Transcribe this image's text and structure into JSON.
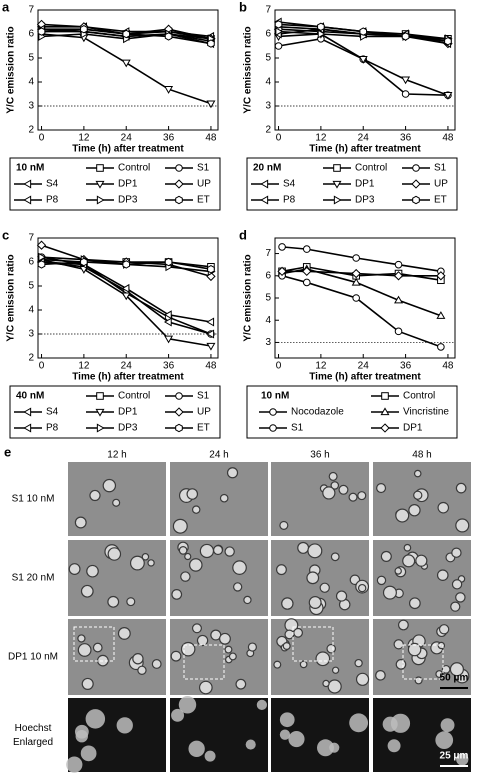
{
  "chart_data": [
    {
      "type": "line",
      "label": "a",
      "xlabel": "Time (h) after treatment",
      "ylabel": "Y/C emission ratio",
      "xlim": [
        -1,
        50
      ],
      "xticks": [
        0,
        12,
        24,
        36,
        48
      ],
      "ylim": [
        2,
        7
      ],
      "yticks": [
        2,
        3,
        4,
        5,
        6,
        7
      ],
      "hline": 3,
      "x": [
        0,
        12,
        24,
        36,
        48
      ],
      "legend_title": "10 nM",
      "series": [
        {
          "name": "Control",
          "marker": "square",
          "color": "#000000",
          "values": [
            6.2,
            6.2,
            6.0,
            6.1,
            5.8
          ]
        },
        {
          "name": "S1",
          "marker": "circle",
          "color": "#000000",
          "values": [
            6.1,
            6.1,
            5.9,
            6.0,
            5.7
          ]
        },
        {
          "name": "S4",
          "marker": "triangle-left",
          "color": "#000000",
          "values": [
            6.3,
            6.3,
            6.1,
            6.1,
            5.9
          ]
        },
        {
          "name": "DP1",
          "marker": "triangle-down",
          "color": "#000000",
          "values": [
            6.0,
            5.85,
            4.8,
            3.7,
            3.1
          ]
        },
        {
          "name": "UP",
          "marker": "diamond",
          "color": "#000000",
          "values": [
            6.4,
            6.3,
            6.0,
            6.2,
            5.8
          ]
        },
        {
          "name": "P8",
          "marker": "triangle-left",
          "color": "#000000",
          "values": [
            6.2,
            6.1,
            5.9,
            6.0,
            5.6
          ]
        },
        {
          "name": "DP3",
          "marker": "triangle-right",
          "color": "#000000",
          "values": [
            5.9,
            6.0,
            5.8,
            6.0,
            5.8
          ]
        },
        {
          "name": "ET",
          "marker": "hexagon",
          "color": "#000000",
          "values": [
            6.1,
            6.2,
            6.0,
            5.9,
            5.6
          ]
        }
      ]
    },
    {
      "type": "line",
      "label": "b",
      "xlabel": "Time (h) after treatment",
      "ylabel": "Y/C emission ratio",
      "xlim": [
        -1,
        50
      ],
      "xticks": [
        0,
        12,
        24,
        36,
        48
      ],
      "ylim": [
        2,
        7
      ],
      "yticks": [
        2,
        3,
        4,
        5,
        6,
        7
      ],
      "hline": 3,
      "x": [
        0,
        12,
        24,
        36,
        48
      ],
      "legend_title": "20 nM",
      "series": [
        {
          "name": "Control",
          "marker": "square",
          "color": "#000000",
          "values": [
            6.3,
            6.2,
            6.0,
            6.0,
            5.8
          ]
        },
        {
          "name": "S1",
          "marker": "circle",
          "color": "#000000",
          "values": [
            5.5,
            5.8,
            4.95,
            3.5,
            3.45
          ]
        },
        {
          "name": "S4",
          "marker": "triangle-left",
          "color": "#000000",
          "values": [
            6.5,
            6.3,
            6.1,
            6.0,
            5.7
          ]
        },
        {
          "name": "DP1",
          "marker": "triangle-down",
          "color": "#000000",
          "values": [
            5.9,
            6.0,
            4.95,
            4.1,
            3.45
          ]
        },
        {
          "name": "UP",
          "marker": "diamond",
          "color": "#000000",
          "values": [
            6.2,
            6.1,
            6.0,
            5.9,
            5.6
          ]
        },
        {
          "name": "P8",
          "marker": "triangle-left",
          "color": "#000000",
          "values": [
            6.0,
            6.2,
            6.0,
            6.0,
            5.6
          ]
        },
        {
          "name": "DP3",
          "marker": "triangle-right",
          "color": "#000000",
          "values": [
            6.1,
            6.0,
            5.9,
            5.9,
            5.8
          ]
        },
        {
          "name": "ET",
          "marker": "hexagon",
          "color": "#000000",
          "values": [
            6.4,
            6.3,
            6.1,
            5.9,
            5.7
          ]
        }
      ]
    },
    {
      "type": "line",
      "label": "c",
      "xlabel": "Time (h) after treatment",
      "ylabel": "Y/C emission ratio",
      "xlim": [
        -1,
        50
      ],
      "xticks": [
        0,
        12,
        24,
        36,
        48
      ],
      "ylim": [
        2,
        7
      ],
      "yticks": [
        2,
        3,
        4,
        5,
        6,
        7
      ],
      "hline": 3,
      "x": [
        0,
        12,
        24,
        36,
        48
      ],
      "legend_title": "40 nM",
      "series": [
        {
          "name": "Control",
          "marker": "square",
          "color": "#000000",
          "values": [
            6.1,
            6.0,
            6.0,
            6.0,
            5.8
          ]
        },
        {
          "name": "S1",
          "marker": "circle",
          "color": "#000000",
          "values": [
            6.2,
            5.9,
            4.7,
            3.7,
            3.0
          ]
        },
        {
          "name": "S4",
          "marker": "triangle-left",
          "color": "#000000",
          "values": [
            6.0,
            5.8,
            4.8,
            3.5,
            3.0
          ]
        },
        {
          "name": "DP1",
          "marker": "triangle-down",
          "color": "#000000",
          "values": [
            6.1,
            5.7,
            4.6,
            2.8,
            2.5
          ]
        },
        {
          "name": "UP",
          "marker": "diamond",
          "color": "#000000",
          "values": [
            6.7,
            6.1,
            6.0,
            5.9,
            5.4
          ]
        },
        {
          "name": "P8",
          "marker": "triangle-left",
          "color": "#000000",
          "values": [
            6.0,
            5.9,
            4.9,
            3.8,
            3.5
          ]
        },
        {
          "name": "DP3",
          "marker": "triangle-right",
          "color": "#000000",
          "values": [
            6.2,
            6.1,
            5.9,
            5.8,
            5.6
          ]
        },
        {
          "name": "ET",
          "marker": "hexagon",
          "color": "#000000",
          "values": [
            5.9,
            6.0,
            5.9,
            6.0,
            5.7
          ]
        }
      ]
    },
    {
      "type": "line",
      "label": "d",
      "xlabel": "Time (h) after treatment",
      "ylabel": "Y/C emission ratio",
      "xlim": [
        -1,
        50
      ],
      "xticks": [
        0,
        12,
        24,
        36,
        48
      ],
      "ylim": [
        2.3,
        7.7
      ],
      "yticks": [
        3,
        4,
        5,
        6,
        7
      ],
      "hline": 3,
      "x": [
        1,
        8,
        22,
        34,
        46
      ],
      "legend_title": "10 nM",
      "series": [
        {
          "name": "Control",
          "marker": "square",
          "color": "#000000",
          "values": [
            6.2,
            6.4,
            6.0,
            6.1,
            5.8
          ]
        },
        {
          "name": "Nocodazole",
          "marker": "circle",
          "color": "#000000",
          "values": [
            7.3,
            7.2,
            6.8,
            6.5,
            6.2
          ]
        },
        {
          "name": "Vincristine",
          "marker": "triangle-up",
          "color": "#000000",
          "values": [
            6.1,
            6.3,
            5.7,
            4.9,
            4.2
          ]
        },
        {
          "name": "S1",
          "marker": "circle",
          "color": "#000000",
          "values": [
            6.0,
            5.7,
            5.0,
            3.5,
            2.8
          ]
        },
        {
          "name": "DP1",
          "marker": "diamond",
          "color": "#000000",
          "values": [
            6.2,
            6.2,
            6.1,
            6.0,
            6.0
          ]
        }
      ]
    }
  ],
  "panel_e": {
    "label": "e",
    "columns": [
      "12 h",
      "24 h",
      "36 h",
      "48 h"
    ],
    "rows": [
      "S1 10 nM",
      "S1 20 nM",
      "DP1 10 nM",
      "Hoechst\nEnlarged"
    ],
    "scale_bars": [
      "50 μm",
      "25 μm"
    ]
  }
}
